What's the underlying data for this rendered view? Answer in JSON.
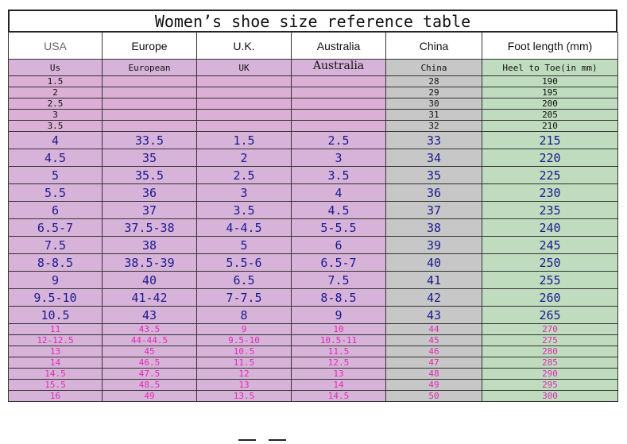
{
  "title": "Women’s shoe size reference table",
  "headers": [
    "USA",
    "Europe",
    "U.K.",
    "Australia",
    "China",
    "Foot length (mm)"
  ],
  "subheaders": [
    "Us",
    "European",
    "UK",
    "Australia",
    "China",
    "Heel to Toe(in mm)"
  ],
  "small_rows": [
    [
      "1.5",
      "",
      "",
      "",
      "28",
      "190"
    ],
    [
      "2",
      "",
      "",
      "",
      "29",
      "195"
    ],
    [
      "2.5",
      "",
      "",
      "",
      "30",
      "200"
    ],
    [
      "3",
      "",
      "",
      "",
      "31",
      "205"
    ],
    [
      "3.5",
      "",
      "",
      "",
      "32",
      "210"
    ]
  ],
  "big_rows": [
    [
      "4",
      "33.5",
      "1.5",
      "2.5",
      "33",
      "215"
    ],
    [
      "4.5",
      "35",
      "2",
      "3",
      "34",
      "220"
    ],
    [
      "5",
      "35.5",
      "2.5",
      "3.5",
      "35",
      "225"
    ],
    [
      "5.5",
      "36",
      "3",
      "4",
      "36",
      "230"
    ],
    [
      "6",
      "37",
      "3.5",
      "4.5",
      "37",
      "235"
    ],
    [
      "6.5-7",
      "37.5-38",
      "4-4.5",
      "5-5.5",
      "38",
      "240"
    ],
    [
      "7.5",
      "38",
      "5",
      "6",
      "39",
      "245"
    ],
    [
      "8-8.5",
      "38.5-39",
      "5.5-6",
      "6.5-7",
      "40",
      "250"
    ],
    [
      "9",
      "40",
      "6.5",
      "7.5",
      "41",
      "255"
    ],
    [
      "9.5-10",
      "41-42",
      "7-7.5",
      "8-8.5",
      "42",
      "260"
    ],
    [
      "10.5",
      "43",
      "8",
      "9",
      "43",
      "265"
    ]
  ],
  "pink_rows": [
    [
      "11",
      "43.5",
      "9",
      "10",
      "44",
      "270"
    ],
    [
      "12-12.5",
      "44-44.5",
      "9.5-10",
      "10.5-11",
      "45",
      "275"
    ],
    [
      "13",
      "45",
      "10.5",
      "11.5",
      "46",
      "280"
    ],
    [
      "14",
      "46.5",
      "11.5",
      "12.5",
      "47",
      "285"
    ],
    [
      "14.5",
      "47.5",
      "12",
      "13",
      "48",
      "290"
    ],
    [
      "15.5",
      "48.5",
      "13",
      "14",
      "49",
      "295"
    ],
    [
      "16",
      "49",
      "13.5",
      "14.5",
      "50",
      "300"
    ]
  ],
  "colors": {
    "purple_bg": "#d7b3d9",
    "gray_bg": "#c7c7c7",
    "green_bg": "#bfdcbe",
    "big_text": "#1a1a8e",
    "pink_text": "#e02ab4"
  }
}
